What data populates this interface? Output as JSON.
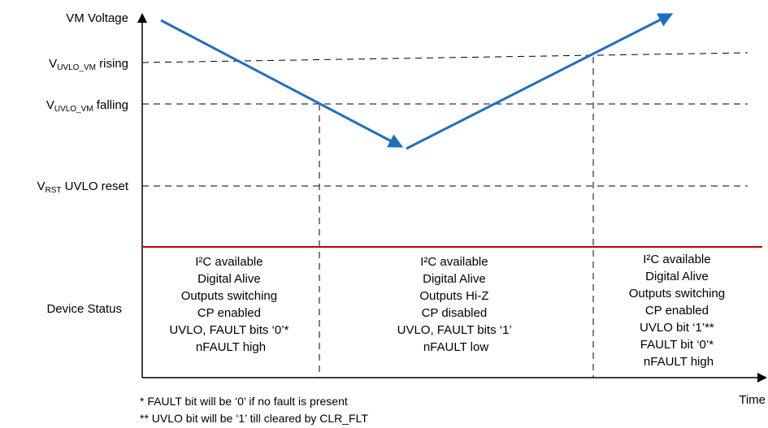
{
  "y_axis": {
    "title": "VM Voltage",
    "levels": [
      {
        "main": "V",
        "sub": "UVLO_VM",
        "suffix": " rising"
      },
      {
        "main": "V",
        "sub": "UVLO_VM",
        "suffix": " falling"
      },
      {
        "main": "V",
        "sub": "RST",
        "suffix": " UVLO reset"
      }
    ],
    "status_label": "Device Status"
  },
  "x_axis": {
    "title": "Time"
  },
  "regions": [
    {
      "lines": [
        "I²C available",
        "Digital Alive",
        "Outputs switching",
        "CP enabled",
        "UVLO, FAULT bits ‘0’*",
        "nFAULT high"
      ]
    },
    {
      "lines": [
        "I²C available",
        "Digital Alive",
        "Outputs Hi-Z",
        "CP disabled",
        "UVLO, FAULT bits ‘1’",
        "nFAULT low"
      ]
    },
    {
      "lines": [
        "I²C available",
        "Digital Alive",
        "Outputs switching",
        "CP enabled",
        "UVLO bit ‘1’**",
        "FAULT bit ‘0’*",
        "nFAULT high"
      ]
    }
  ],
  "footnotes": [
    "* FAULT bit will be ‘0’ if no fault is present",
    "** UVLO bit will be ‘1’ till cleared by CLR_FLT"
  ],
  "colors": {
    "voltage_trace": "#1f6fbf",
    "status_divider": "#c00000",
    "axis": "#000000"
  }
}
